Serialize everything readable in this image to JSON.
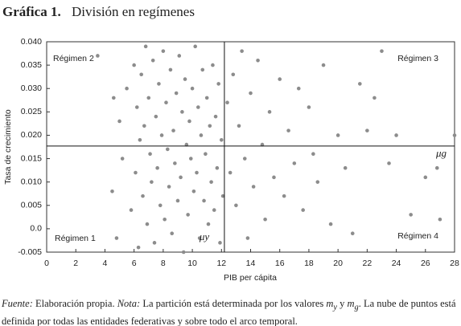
{
  "chart_data": {
    "type": "scatter",
    "title_label": "Gráfica 1.",
    "title": "División en regímenes",
    "xlabel": "PIB per cápita",
    "ylabel": "Tasa de crecimiento",
    "color": "#8c8c8c",
    "x": [
      3.5,
      4.5,
      4.6,
      4.8,
      5.0,
      5.2,
      5.5,
      5.8,
      6.0,
      6.1,
      6.2,
      6.3,
      6.4,
      6.5,
      6.6,
      6.7,
      6.8,
      6.9,
      7.0,
      7.1,
      7.2,
      7.3,
      7.4,
      7.5,
      7.6,
      7.7,
      7.8,
      7.9,
      8.0,
      8.1,
      8.2,
      8.3,
      8.4,
      8.5,
      8.6,
      8.7,
      8.8,
      8.9,
      9.0,
      9.1,
      9.2,
      9.3,
      9.4,
      9.5,
      9.6,
      9.7,
      9.8,
      9.9,
      10.0,
      10.1,
      10.2,
      10.3,
      10.4,
      10.5,
      10.6,
      10.7,
      10.8,
      10.9,
      11.0,
      11.1,
      11.2,
      11.3,
      11.4,
      11.5,
      11.6,
      11.7,
      11.8,
      11.9,
      12.0,
      12.1,
      12.4,
      12.6,
      12.8,
      13.0,
      13.2,
      13.4,
      13.6,
      13.8,
      14.0,
      14.2,
      14.5,
      14.8,
      15.0,
      15.3,
      15.6,
      16.0,
      16.3,
      16.6,
      17.0,
      17.3,
      17.6,
      18.0,
      18.3,
      18.6,
      19.0,
      19.5,
      20.0,
      20.5,
      21.0,
      21.5,
      22.0,
      22.5,
      23.0,
      23.5,
      24.0,
      25.0,
      26.0,
      26.8,
      27.0,
      28.0
    ],
    "values": [
      0.037,
      0.008,
      0.028,
      -0.002,
      0.023,
      0.015,
      0.03,
      0.004,
      0.035,
      0.012,
      0.026,
      -0.004,
      0.019,
      0.033,
      0.007,
      0.022,
      0.039,
      0.001,
      0.028,
      0.016,
      0.01,
      0.036,
      -0.003,
      0.024,
      0.013,
      0.031,
      0.005,
      0.02,
      0.038,
      0.002,
      0.027,
      0.017,
      0.009,
      0.034,
      -0.001,
      0.021,
      0.014,
      0.029,
      0.006,
      0.037,
      0.011,
      0.025,
      -0.005,
      0.032,
      0.018,
      0.003,
      0.023,
      0.015,
      0.03,
      0.008,
      0.039,
      0.012,
      0.026,
      -0.002,
      0.02,
      0.034,
      0.006,
      0.016,
      0.028,
      0.001,
      0.022,
      0.01,
      0.035,
      0.004,
      0.024,
      0.013,
      0.031,
      -0.003,
      0.019,
      0.007,
      0.027,
      0.012,
      0.033,
      0.005,
      0.022,
      0.038,
      0.015,
      -0.002,
      0.029,
      0.009,
      0.036,
      0.018,
      0.002,
      0.025,
      0.011,
      0.032,
      0.007,
      0.021,
      0.014,
      0.03,
      0.004,
      0.026,
      0.016,
      0.01,
      0.035,
      0.001,
      0.02,
      0.013,
      -0.001,
      0.031,
      0.021,
      0.028,
      0.038,
      0.014,
      0.02,
      0.003,
      0.011,
      0.013,
      0.002,
      0.02
    ],
    "x_threshold": 12.2,
    "y_threshold": 0.0177,
    "xlim": [
      0,
      28
    ],
    "xticks": [
      0,
      2,
      4,
      6,
      8,
      10,
      12,
      14,
      16,
      18,
      20,
      22,
      24,
      26,
      28
    ],
    "ylim": [
      -0.005,
      0.04
    ],
    "yticks": [
      {
        "value": 0.04,
        "label": "0.040"
      },
      {
        "value": 0.035,
        "label": "0.035"
      },
      {
        "value": 0.03,
        "label": "0.030"
      },
      {
        "value": 0.025,
        "label": "0.025"
      },
      {
        "value": 0.02,
        "label": "0.020"
      },
      {
        "value": 0.015,
        "label": "0.015"
      },
      {
        "value": 0.01,
        "label": "0.010"
      },
      {
        "value": 0.005,
        "label": "0.005"
      },
      {
        "value": 0,
        "label": "0.0"
      },
      {
        "value": -0.005,
        "label": "-0.005"
      }
    ],
    "annotations": [
      "Régimen 2",
      "Régimen 3",
      "Régimen 1",
      "Régimen 4",
      "μg",
      "μy"
    ],
    "source_label": "Fuente:",
    "source": "Elaboración propia.",
    "note_label": "Nota:",
    "note_parts": [
      "La partición está determinada por los valores",
      "m",
      "y",
      "y",
      "m",
      "g",
      ". La nube de puntos está definida por todas las entidades federativas y sobre todo el arco temporal."
    ]
  }
}
